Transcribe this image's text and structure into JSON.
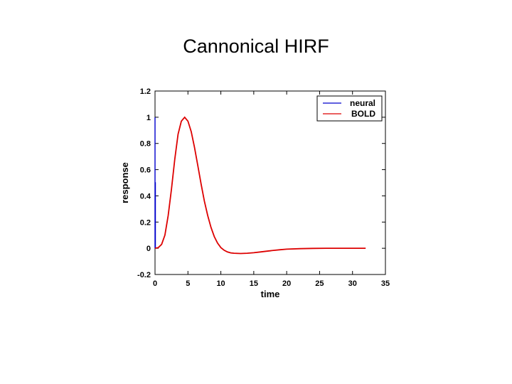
{
  "slide": {
    "title": "Cannonical HIRF"
  },
  "chart_data": {
    "type": "line",
    "title": "",
    "xlabel": "time",
    "ylabel": "response",
    "xlim": [
      0,
      35
    ],
    "ylim": [
      -0.2,
      1.2
    ],
    "x_ticks": [
      "0",
      "5",
      "10",
      "15",
      "20",
      "25",
      "30",
      "35"
    ],
    "y_ticks": [
      "-0.2",
      "0",
      "0.2",
      "0.4",
      "0.6",
      "0.8",
      "1",
      "1.2"
    ],
    "grid": false,
    "legend_position": "top-right",
    "series": [
      {
        "name": "neural",
        "color": "#0000cc",
        "x": [
          0,
          0,
          0,
          0.05,
          0.05,
          0.1
        ],
        "y": [
          0,
          1,
          0.5,
          0.5,
          0,
          0
        ]
      },
      {
        "name": "BOLD",
        "color": "#dd0000",
        "x": [
          0,
          0.5,
          1,
          1.5,
          2,
          2.5,
          3,
          3.5,
          4,
          4.5,
          5,
          5.5,
          6,
          6.5,
          7,
          7.5,
          8,
          8.5,
          9,
          9.5,
          10,
          10.5,
          11,
          11.5,
          12,
          13,
          14,
          15,
          16,
          17,
          18,
          19,
          20,
          22,
          24,
          26,
          28,
          30,
          32
        ],
        "y": [
          0,
          0.005,
          0.03,
          0.1,
          0.25,
          0.45,
          0.68,
          0.87,
          0.97,
          1.0,
          0.97,
          0.89,
          0.77,
          0.63,
          0.49,
          0.36,
          0.25,
          0.16,
          0.09,
          0.04,
          0.005,
          -0.015,
          -0.028,
          -0.035,
          -0.038,
          -0.04,
          -0.038,
          -0.034,
          -0.028,
          -0.022,
          -0.016,
          -0.011,
          -0.007,
          -0.003,
          -0.001,
          0.0,
          0.0,
          0.0,
          0.0
        ]
      }
    ]
  }
}
